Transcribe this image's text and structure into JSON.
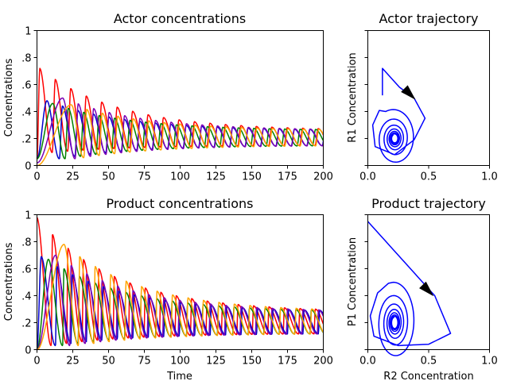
{
  "chart_data": [
    {
      "type": "line",
      "title": "Actor concentrations",
      "xlabel": "",
      "ylabel": "Concentrations",
      "xlim": [
        0,
        200
      ],
      "ylim": [
        0,
        1
      ],
      "xticks": [
        0,
        25,
        50,
        75,
        100,
        125,
        150,
        175,
        200
      ],
      "xtick_labels": [
        "0",
        "25",
        "50",
        "75",
        "100",
        "125",
        "150",
        "175",
        "200"
      ],
      "yticks": [
        0,
        0.2,
        0.4,
        0.6,
        0.8,
        1.0
      ],
      "ytick_labels": [
        "0",
        ".2",
        ".4",
        ".6",
        ".8",
        "1"
      ],
      "series": [
        {
          "color": "#ff0000",
          "shape": {
            "init": 0.05,
            "peak_t": 2,
            "first_peak": 0.72,
            "period": 10.8,
            "first_trough": 0.08,
            "final_max": 0.26,
            "final_min": 0.15,
            "rise": 0.2
          }
        },
        {
          "color": "#0000cc",
          "shape": {
            "init": 0.05,
            "peak_t": 7,
            "first_peak": 0.48,
            "period": 10.8,
            "first_trough": 0.02,
            "final_max": 0.26,
            "final_min": 0.15,
            "rise": 0.2
          }
        },
        {
          "color": "#008000",
          "shape": {
            "init": 0.05,
            "peak_t": 11,
            "first_peak": 0.46,
            "period": 10.8,
            "first_trough": 0.02,
            "final_max": 0.26,
            "final_min": 0.15,
            "rise": 0.2
          }
        },
        {
          "color": "#7b00b4",
          "shape": {
            "init": 0.02,
            "peak_t": 18,
            "first_peak": 0.5,
            "period": 10.8,
            "first_trough": 0.02,
            "final_max": 0.26,
            "final_min": 0.15,
            "rise": 0.2
          }
        },
        {
          "color": "#ffa500",
          "shape": {
            "init": 0.0,
            "peak_t": 24,
            "first_peak": 0.45,
            "period": 10.8,
            "first_trough": 0.03,
            "final_max": 0.26,
            "final_min": 0.15,
            "rise": 0.2
          }
        }
      ]
    },
    {
      "type": "line",
      "title": "Actor trajectory",
      "xlabel": "",
      "ylabel": "R1 Concentration",
      "xlim": [
        0,
        1
      ],
      "ylim": [
        0,
        1
      ],
      "xticks": [
        0,
        0.5,
        1.0
      ],
      "xtick_labels": [
        "0.0",
        "0.5",
        "1.0"
      ],
      "yticks": [
        0,
        0.2,
        0.4,
        0.6,
        0.8,
        1.0
      ],
      "ytick_labels": [],
      "trajectory": {
        "color": "#0000ff",
        "center": [
          0.2,
          0.2
        ],
        "start": [
          0.12,
          0.52
        ],
        "tail_to": [
          0.12,
          0.72
        ],
        "first_loop": [
          [
            0.12,
            0.72
          ],
          [
            0.26,
            0.58
          ],
          [
            0.38,
            0.5
          ],
          [
            0.47,
            0.35
          ],
          [
            0.38,
            0.19
          ],
          [
            0.22,
            0.08
          ],
          [
            0.06,
            0.14
          ],
          [
            0.04,
            0.3
          ],
          [
            0.1,
            0.42
          ]
        ],
        "loops": 7,
        "arrow_at": [
          0.3,
          0.57
        ],
        "arrow_dir": [
          0.7,
          -0.7
        ]
      }
    },
    {
      "type": "line",
      "title": "Product concentrations",
      "xlabel": "Time",
      "ylabel": "Concentrations",
      "xlim": [
        0,
        200
      ],
      "ylim": [
        0,
        1
      ],
      "xticks": [
        0,
        25,
        50,
        75,
        100,
        125,
        150,
        175,
        200
      ],
      "xtick_labels": [
        "0",
        "25",
        "50",
        "75",
        "100",
        "125",
        "150",
        "175",
        "200"
      ],
      "yticks": [
        0,
        0.2,
        0.4,
        0.6,
        0.8,
        1.0
      ],
      "ytick_labels": [
        "0",
        ".2",
        ".4",
        ".6",
        ".8",
        "1"
      ],
      "series": [
        {
          "color": "#ff0000",
          "shape": {
            "init": 0.98,
            "peak_t": 0,
            "first_peak": 0.98,
            "period": 10.8,
            "first_trough": 0.0,
            "final_max": 0.28,
            "final_min": 0.12,
            "rise": 0.08
          }
        },
        {
          "color": "#0000cc",
          "shape": {
            "init": 0.0,
            "peak_t": 3,
            "first_peak": 0.69,
            "period": 10.8,
            "first_trough": 0.0,
            "final_max": 0.28,
            "final_min": 0.12,
            "rise": 0.08
          }
        },
        {
          "color": "#008000",
          "shape": {
            "init": 0.0,
            "peak_t": 8,
            "first_peak": 0.67,
            "period": 10.8,
            "first_trough": 0.0,
            "final_max": 0.28,
            "final_min": 0.12,
            "rise": 0.08
          }
        },
        {
          "color": "#7b00b4",
          "shape": {
            "init": 0.0,
            "peak_t": 13,
            "first_peak": 0.7,
            "period": 10.8,
            "first_trough": 0.0,
            "final_max": 0.28,
            "final_min": 0.12,
            "rise": 0.08
          }
        },
        {
          "color": "#ffa500",
          "shape": {
            "init": 0.0,
            "peak_t": 19,
            "first_peak": 0.78,
            "period": 10.8,
            "first_trough": 0.0,
            "final_max": 0.28,
            "final_min": 0.12,
            "rise": 0.08
          }
        }
      ]
    },
    {
      "type": "line",
      "title": "Product trajectory",
      "xlabel": "R2 Concentration",
      "ylabel": "P1 Concentration",
      "xlim": [
        0,
        1
      ],
      "ylim": [
        0,
        1
      ],
      "xticks": [
        0,
        0.5,
        1.0
      ],
      "xtick_labels": [
        "0.0",
        "0.5",
        "1.0"
      ],
      "yticks": [
        0,
        0.2,
        0.4,
        0.6,
        0.8,
        1.0
      ],
      "ytick_labels": [],
      "trajectory": {
        "color": "#0000ff",
        "center": [
          0.2,
          0.2
        ],
        "start": [
          0.0,
          0.95
        ],
        "tail_to": [
          0.0,
          0.95
        ],
        "first_loop": [
          [
            0.0,
            0.95
          ],
          [
            0.35,
            0.6
          ],
          [
            0.55,
            0.4
          ],
          [
            0.68,
            0.12
          ],
          [
            0.5,
            0.04
          ],
          [
            0.25,
            0.03
          ],
          [
            0.05,
            0.1
          ],
          [
            0.02,
            0.25
          ],
          [
            0.08,
            0.42
          ],
          [
            0.18,
            0.5
          ]
        ],
        "loops": 7,
        "arrow_at": [
          0.45,
          0.48
        ],
        "arrow_dir": [
          0.7,
          -0.72
        ]
      }
    }
  ]
}
